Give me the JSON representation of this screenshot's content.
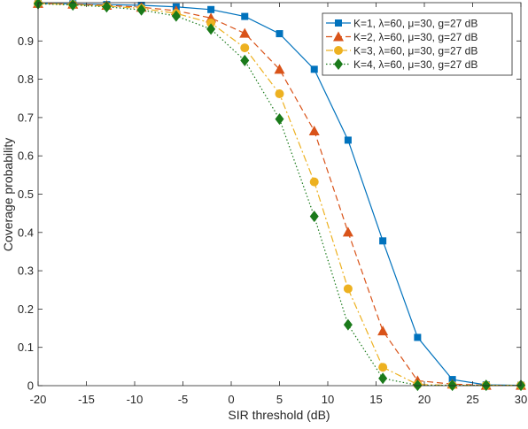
{
  "chart_data": {
    "type": "line",
    "title": "",
    "xlabel": "SIR threshold (dB)",
    "ylabel": "Coverage probability",
    "xlim": [
      -20,
      30
    ],
    "ylim": [
      0,
      1
    ],
    "xticks": [
      -20,
      -15,
      -10,
      -5,
      0,
      5,
      10,
      15,
      20,
      25,
      30
    ],
    "yticks": [
      0,
      0.1,
      0.2,
      0.3,
      0.4,
      0.5,
      0.6,
      0.7,
      0.8,
      0.9
    ],
    "grid": false,
    "legend_position": "top-right",
    "series": [
      {
        "name": "K=1,  λ=60, μ=30, g=27 dB",
        "color": "#0072BD",
        "marker": "square",
        "line": "solid",
        "x": [
          -20,
          -16.4,
          -12.9,
          -9.3,
          -5.7,
          -2.1,
          1.4,
          5,
          8.6,
          12.1,
          15.7,
          19.3,
          22.9,
          26.4,
          30
        ],
        "y": [
          0.998,
          0.997,
          0.995,
          0.993,
          0.989,
          0.982,
          0.964,
          0.919,
          0.826,
          0.641,
          0.378,
          0.126,
          0.016,
          0.002,
          0.001
        ]
      },
      {
        "name": "K=2,  λ=60, μ=30, g=27 dB",
        "color": "#D95319",
        "marker": "triangle",
        "line": "dashed",
        "x": [
          -20,
          -16.4,
          -12.9,
          -9.3,
          -5.7,
          -2.1,
          1.4,
          5,
          8.6,
          12.1,
          15.7,
          19.3,
          22.9,
          26.4,
          30
        ],
        "y": [
          0.998,
          0.996,
          0.993,
          0.988,
          0.979,
          0.96,
          0.92,
          0.826,
          0.665,
          0.401,
          0.143,
          0.013,
          0.004,
          0.001,
          0.001
        ]
      },
      {
        "name": "K=3,  λ=60, μ=30, g=27 dB",
        "color": "#EDB120",
        "marker": "circle",
        "line": "dashdot",
        "x": [
          -20,
          -16.4,
          -12.9,
          -9.3,
          -5.7,
          -2.1,
          1.4,
          5,
          8.6,
          12.1,
          15.7,
          19.3,
          22.9,
          26.4,
          30
        ],
        "y": [
          0.998,
          0.995,
          0.991,
          0.985,
          0.972,
          0.947,
          0.882,
          0.762,
          0.532,
          0.253,
          0.048,
          0.003,
          0.001,
          0.001,
          0.001
        ]
      },
      {
        "name": "K=4,  λ=60, μ=30, g=27 dB",
        "color": "#1A7A1A",
        "marker": "diamond",
        "line": "dotted",
        "x": [
          -20,
          -16.4,
          -12.9,
          -9.3,
          -5.7,
          -2.1,
          1.4,
          5,
          8.6,
          12.1,
          15.7,
          19.3,
          22.9,
          26.4,
          30
        ],
        "y": [
          0.997,
          0.994,
          0.989,
          0.981,
          0.965,
          0.931,
          0.849,
          0.696,
          0.442,
          0.159,
          0.019,
          0.001,
          0.001,
          0.001,
          0.001
        ]
      }
    ]
  }
}
